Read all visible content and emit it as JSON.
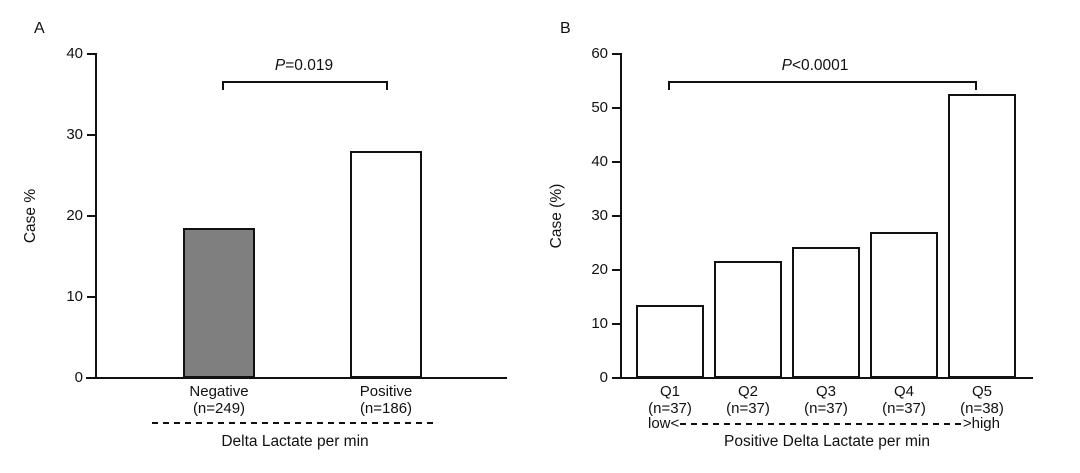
{
  "figure": {
    "background_color": "#ffffff",
    "ink_color": "#111111"
  },
  "chart_data": [
    {
      "type": "bar",
      "panel_label": "A",
      "ylabel": "Case %",
      "xlabel": "Delta Lactate per min",
      "ylim": [
        0,
        40
      ],
      "yticks": [
        0,
        10,
        20,
        30,
        40
      ],
      "categories": [
        "Negative",
        "Positive"
      ],
      "category_sublabels": [
        "(n=249)",
        "(n=186)"
      ],
      "values": [
        18.5,
        28
      ],
      "bar_colors": [
        "#7f7f7f",
        "#ffffff"
      ],
      "grid": false,
      "legend": false,
      "significance": {
        "p_italic": "P",
        "p_rest": "=0.019",
        "from": "Negative",
        "to": "Positive"
      }
    },
    {
      "type": "bar",
      "panel_label": "B",
      "ylabel": "Case (%)",
      "xlabel": "Positive Delta Lactate per min",
      "xlabel_low": "low<",
      "xlabel_high": ">high",
      "ylim": [
        0,
        60
      ],
      "yticks": [
        0,
        10,
        20,
        30,
        40,
        50,
        60
      ],
      "categories": [
        "Q1",
        "Q2",
        "Q3",
        "Q4",
        "Q5"
      ],
      "category_sublabels": [
        "(n=37)",
        "(n=37)",
        "(n=37)",
        "(n=37)",
        "(n=38)"
      ],
      "values": [
        13.5,
        21.6,
        24.3,
        27.1,
        52.6
      ],
      "bar_colors": [
        "#ffffff",
        "#ffffff",
        "#ffffff",
        "#ffffff",
        "#ffffff"
      ],
      "grid": false,
      "legend": false,
      "significance": {
        "p_italic": "P",
        "p_rest": "<0.0001",
        "from": "Q1",
        "to": "Q5"
      }
    }
  ]
}
